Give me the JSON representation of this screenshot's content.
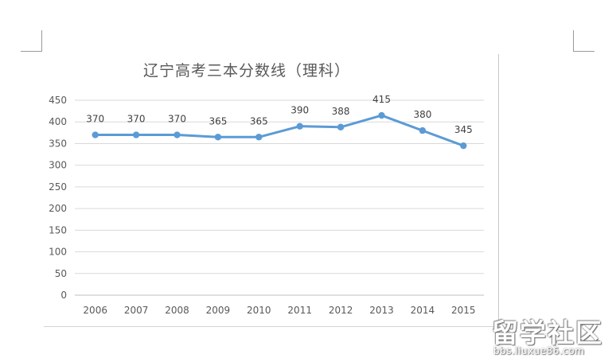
{
  "chart_data": {
    "type": "line",
    "title": "辽宁高考三本分数线（理科）",
    "categories": [
      "2006",
      "2007",
      "2008",
      "2009",
      "2010",
      "2011",
      "2012",
      "2013",
      "2014",
      "2015"
    ],
    "values": [
      370,
      370,
      370,
      365,
      365,
      390,
      388,
      415,
      380,
      345
    ],
    "ylim": [
      0,
      450
    ],
    "yticks": [
      "0",
      "50",
      "100",
      "150",
      "200",
      "250",
      "300",
      "350",
      "400",
      "450"
    ],
    "grid": true,
    "data_labels": true,
    "line_color": "#5b9bd5",
    "xlabel": "",
    "ylabel": ""
  },
  "watermark": {
    "main": "留学社区",
    "url": "bbs.liuxue86.com"
  }
}
